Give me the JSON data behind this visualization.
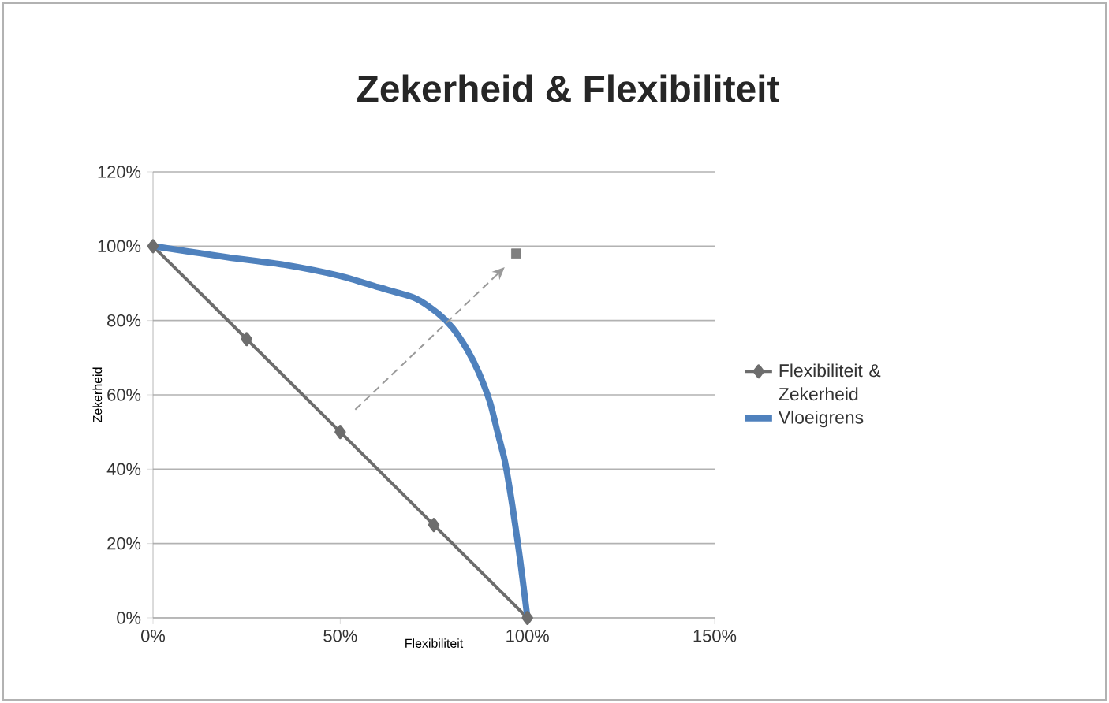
{
  "chart_data": {
    "type": "line",
    "title": "Zekerheid & Flexibiliteit",
    "xlabel": "Flexibiliteit",
    "ylabel": "Zekerheid",
    "xlim": [
      0,
      150
    ],
    "xticks": [
      {
        "value": 0,
        "label": "0%"
      },
      {
        "value": 50,
        "label": "50%"
      },
      {
        "value": 100,
        "label": "100%"
      },
      {
        "value": 150,
        "label": "150%"
      }
    ],
    "ylim": [
      0,
      120
    ],
    "yticks": [
      {
        "value": 0,
        "label": "0%"
      },
      {
        "value": 20,
        "label": "20%"
      },
      {
        "value": 40,
        "label": "40%"
      },
      {
        "value": 60,
        "label": "60%"
      },
      {
        "value": 80,
        "label": "80%"
      },
      {
        "value": 100,
        "label": "100%"
      },
      {
        "value": 120,
        "label": "120%"
      }
    ],
    "grid": "y",
    "legend": "right",
    "series": [
      {
        "name": "Flexibiliteit & Zekerheid",
        "color": "#6d6d6d",
        "marker": "diamond",
        "x": [
          0,
          25,
          50,
          75,
          100
        ],
        "values": [
          100,
          75,
          50,
          25,
          0
        ]
      },
      {
        "name": "Vloeigrens",
        "color": "#4f81bd",
        "marker": "none",
        "x": [
          0,
          20,
          35,
          50,
          60,
          70,
          76,
          80,
          84,
          87,
          90,
          92,
          94,
          96,
          98,
          100
        ],
        "values": [
          100,
          97,
          95,
          92,
          89,
          86,
          82,
          78,
          72,
          66,
          58,
          50,
          42,
          30,
          16,
          0
        ]
      },
      {
        "color": "#9a9a9a",
        "line_style": "dashed",
        "x": [
          54,
          91.5
        ],
        "values": [
          56,
          92
        ]
      },
      {
        "type": "scatter",
        "color": "#7f7f7f",
        "marker": "square",
        "x": [
          97
        ],
        "values": [
          98
        ]
      }
    ]
  }
}
